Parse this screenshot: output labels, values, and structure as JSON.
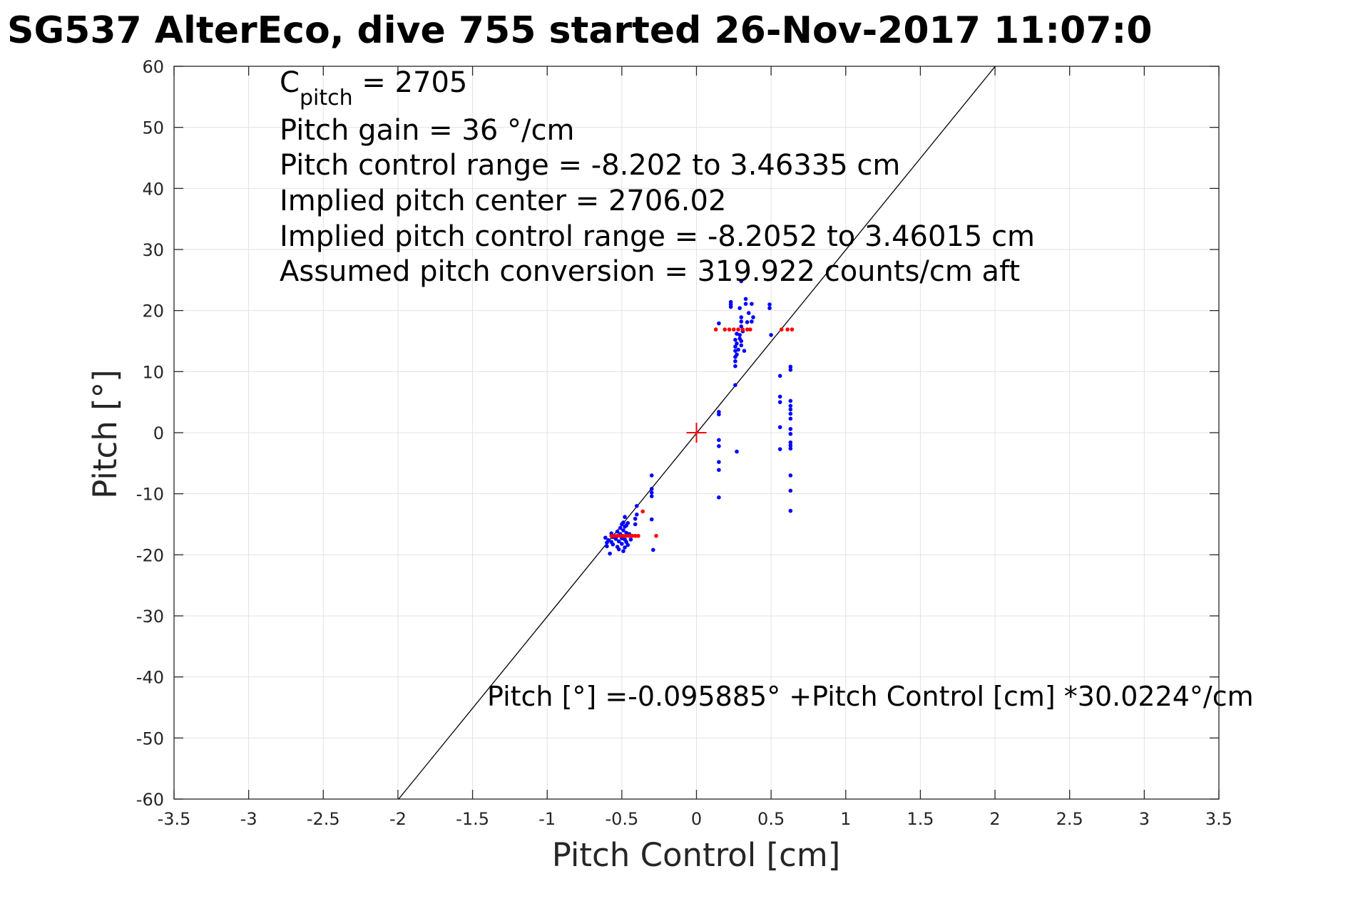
{
  "chart_data": {
    "type": "scatter",
    "title": "SG537 AlterEco, dive 755 started 26-Nov-2017 11:07:0",
    "xlabel": "Pitch Control [cm]",
    "ylabel": "Pitch [°]",
    "xlim": [
      -3.5,
      3.5
    ],
    "ylim": [
      -60,
      60
    ],
    "grid": true,
    "xticks": [
      -3.5,
      -3,
      -2.5,
      -2,
      -1.5,
      -1,
      -0.5,
      0,
      0.5,
      1,
      1.5,
      2,
      2.5,
      3,
      3.5
    ],
    "yticks": [
      -60,
      -50,
      -40,
      -30,
      -20,
      -10,
      0,
      10,
      20,
      30,
      40,
      50,
      60
    ],
    "xtick_labels": [
      "-3.5",
      "-3",
      "-2.5",
      "-2",
      "-1.5",
      "-1",
      "-0.5",
      "0",
      "0.5",
      "1",
      "1.5",
      "2",
      "2.5",
      "3",
      "3.5"
    ],
    "ytick_labels": [
      "-60",
      "-50",
      "-40",
      "-30",
      "-20",
      "-10",
      "0",
      "10",
      "20",
      "30",
      "40",
      "50",
      "60"
    ],
    "annotations": [
      {
        "text": "C",
        "sub": "pitch",
        "tail": " = 2705"
      },
      {
        "text": "Pitch gain = 36 °/cm"
      },
      {
        "text": "Pitch control range = -8.202 to 3.46335 cm"
      },
      {
        "text": "Implied pitch center = 2706.02"
      },
      {
        "text": "Implied pitch control range = -8.2052 to 3.46015 cm"
      },
      {
        "text": "Assumed pitch conversion = 319.922 counts/cm aft"
      }
    ],
    "fit_equation": "Pitch [°] =-0.095885° +Pitch Control [cm] *30.0224°/cm",
    "fit": {
      "intercept": -0.095885,
      "slope": 30.0224
    },
    "center_marker": {
      "x": 0,
      "y": 0,
      "color": "#ff0000"
    },
    "colors": {
      "observed": "#0000ff",
      "fit_points": "#ff0000",
      "fit_line": "#000000"
    },
    "series": [
      {
        "color": "#0000ff",
        "points": [
          [
            -0.61,
            -17.2
          ],
          [
            -0.6,
            -18.0
          ],
          [
            -0.6,
            -18.6
          ],
          [
            -0.59,
            -17.6
          ],
          [
            -0.58,
            -19.8
          ],
          [
            -0.57,
            -16.5
          ],
          [
            -0.57,
            -17.9
          ],
          [
            -0.56,
            -17.1
          ],
          [
            -0.56,
            -18.3
          ],
          [
            -0.55,
            -16.9
          ],
          [
            -0.54,
            -17.4
          ],
          [
            -0.53,
            -16.2
          ],
          [
            -0.53,
            -18.7
          ],
          [
            -0.52,
            -17.8
          ],
          [
            -0.52,
            -19.1
          ],
          [
            -0.51,
            -16.6
          ],
          [
            -0.51,
            -15.6
          ],
          [
            -0.5,
            -17.3
          ],
          [
            -0.5,
            -15.0
          ],
          [
            -0.5,
            -18.2
          ],
          [
            -0.49,
            -16.0
          ],
          [
            -0.49,
            -14.7
          ],
          [
            -0.49,
            -19.4
          ],
          [
            -0.48,
            -17.5
          ],
          [
            -0.48,
            -15.4
          ],
          [
            -0.48,
            -18.8
          ],
          [
            -0.48,
            -13.8
          ],
          [
            -0.47,
            -16.4
          ],
          [
            -0.47,
            -17.9
          ],
          [
            -0.47,
            -15.2
          ],
          [
            -0.46,
            -18.4
          ],
          [
            -0.46,
            -14.8
          ],
          [
            -0.45,
            -16.6
          ],
          [
            -0.44,
            -17.5
          ],
          [
            -0.41,
            -14.1
          ],
          [
            -0.41,
            -15.0
          ],
          [
            -0.4,
            -12.0
          ],
          [
            -0.4,
            -13.4
          ],
          [
            -0.3,
            -7.0
          ],
          [
            -0.3,
            -9.2
          ],
          [
            -0.3,
            -9.8
          ],
          [
            -0.3,
            -10.4
          ],
          [
            -0.3,
            -14.2
          ],
          [
            -0.29,
            -19.2
          ],
          [
            0.15,
            3.0
          ],
          [
            0.15,
            3.4
          ],
          [
            0.15,
            -1.2
          ],
          [
            0.15,
            -2.2
          ],
          [
            0.15,
            -4.8
          ],
          [
            0.15,
            -6.1
          ],
          [
            0.15,
            -10.6
          ],
          [
            0.15,
            17.9
          ],
          [
            0.23,
            21.0
          ],
          [
            0.23,
            21.4
          ],
          [
            0.23,
            20.6
          ],
          [
            0.26,
            7.8
          ],
          [
            0.27,
            -3.1
          ],
          [
            0.26,
            15.2
          ],
          [
            0.26,
            14.1
          ],
          [
            0.26,
            13.4
          ],
          [
            0.26,
            12.4
          ],
          [
            0.26,
            11.7
          ],
          [
            0.26,
            10.9
          ],
          [
            0.27,
            16.2
          ],
          [
            0.27,
            14.6
          ],
          [
            0.27,
            12.8
          ],
          [
            0.28,
            13.6
          ],
          [
            0.29,
            15.4
          ],
          [
            0.29,
            16.0
          ],
          [
            0.29,
            20.4
          ],
          [
            0.3,
            24.8
          ],
          [
            0.3,
            17.4
          ],
          [
            0.3,
            18.2
          ],
          [
            0.3,
            18.9
          ],
          [
            0.3,
            15.0
          ],
          [
            0.3,
            14.3
          ],
          [
            0.31,
            16.6
          ],
          [
            0.32,
            13.4
          ],
          [
            0.33,
            21.9
          ],
          [
            0.33,
            21.1
          ],
          [
            0.34,
            18.1
          ],
          [
            0.35,
            19.6
          ],
          [
            0.37,
            18.2
          ],
          [
            0.37,
            21.1
          ],
          [
            0.38,
            18.9
          ],
          [
            0.49,
            21.0
          ],
          [
            0.49,
            20.4
          ],
          [
            0.5,
            16.0
          ],
          [
            0.56,
            9.3
          ],
          [
            0.56,
            0.9
          ],
          [
            0.56,
            -2.7
          ],
          [
            0.56,
            5.0
          ],
          [
            0.56,
            5.9
          ],
          [
            0.63,
            10.3
          ],
          [
            0.63,
            10.8
          ],
          [
            0.63,
            5.2
          ],
          [
            0.63,
            4.4
          ],
          [
            0.63,
            3.8
          ],
          [
            0.63,
            3.1
          ],
          [
            0.63,
            2.3
          ],
          [
            0.63,
            0.6
          ],
          [
            0.63,
            -0.2
          ],
          [
            0.63,
            -1.6
          ],
          [
            0.63,
            -2.1
          ],
          [
            0.63,
            -2.6
          ],
          [
            0.63,
            -7.0
          ],
          [
            0.63,
            -9.5
          ],
          [
            0.63,
            -12.8
          ]
        ]
      },
      {
        "color": "#ff0000",
        "points": [
          [
            -0.57,
            -16.9
          ],
          [
            -0.55,
            -16.9
          ],
          [
            -0.53,
            -16.9
          ],
          [
            -0.51,
            -16.9
          ],
          [
            -0.49,
            -16.9
          ],
          [
            -0.47,
            -16.9
          ],
          [
            -0.45,
            -16.9
          ],
          [
            -0.43,
            -16.9
          ],
          [
            -0.41,
            -16.9
          ],
          [
            -0.39,
            -16.9
          ],
          [
            -0.36,
            -12.9
          ],
          [
            -0.27,
            -16.9
          ],
          [
            0.13,
            16.9
          ],
          [
            0.19,
            16.9
          ],
          [
            0.22,
            16.9
          ],
          [
            0.25,
            16.9
          ],
          [
            0.28,
            16.9
          ],
          [
            0.31,
            16.9
          ],
          [
            0.34,
            16.9
          ],
          [
            0.36,
            16.9
          ],
          [
            0.57,
            16.9
          ],
          [
            0.61,
            16.9
          ],
          [
            0.64,
            16.9
          ]
        ]
      }
    ]
  }
}
